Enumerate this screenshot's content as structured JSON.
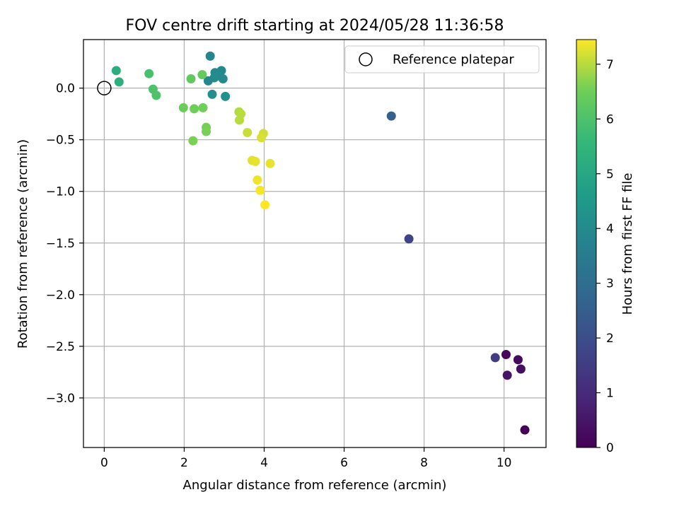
{
  "chart_data": {
    "type": "scatter",
    "title": "FOV centre drift starting at 2024/05/28 11:36:58",
    "xlabel": "Angular distance from reference (arcmin)",
    "ylabel": "Rotation from reference (arcmin)",
    "xlim": [
      -0.52,
      11.05
    ],
    "ylim": [
      -3.48,
      0.47
    ],
    "xticks": [
      0,
      2,
      4,
      6,
      8,
      10
    ],
    "yticks": [
      0.0,
      -0.5,
      -1.0,
      -1.5,
      -2.0,
      -2.5,
      -3.0
    ],
    "xtick_labels": [
      "0",
      "2",
      "4",
      "6",
      "8",
      "10"
    ],
    "ytick_labels": [
      "0.0",
      "−0.5",
      "−1.0",
      "−1.5",
      "−2.0",
      "−2.5",
      "−3.0"
    ],
    "grid": true,
    "legend": {
      "label": "Reference platepar",
      "location": "top-right"
    },
    "reference_point": {
      "x": 0,
      "y": 0
    },
    "colorbar": {
      "label": "Hours from first FF file",
      "colormap": "viridis",
      "range": [
        0,
        7.45
      ],
      "ticks": [
        0,
        1,
        2,
        3,
        4,
        5,
        6,
        7
      ],
      "tick_labels": [
        "0",
        "1",
        "2",
        "3",
        "4",
        "5",
        "6",
        "7"
      ]
    },
    "points": [
      {
        "x": 10.52,
        "y": -3.31,
        "c": 0.05
      },
      {
        "x": 10.05,
        "y": -2.58,
        "c": 0.15
      },
      {
        "x": 10.35,
        "y": -2.63,
        "c": 0.25
      },
      {
        "x": 10.42,
        "y": -2.72,
        "c": 0.35
      },
      {
        "x": 10.08,
        "y": -2.78,
        "c": 0.45
      },
      {
        "x": 9.78,
        "y": -2.61,
        "c": 1.5
      },
      {
        "x": 7.62,
        "y": -1.46,
        "c": 1.7
      },
      {
        "x": 7.18,
        "y": -0.27,
        "c": 2.6
      },
      {
        "x": 2.65,
        "y": 0.31,
        "c": 3.85
      },
      {
        "x": 2.93,
        "y": 0.17,
        "c": 3.95
      },
      {
        "x": 2.77,
        "y": 0.15,
        "c": 4.0
      },
      {
        "x": 2.85,
        "y": 0.12,
        "c": 4.05
      },
      {
        "x": 2.75,
        "y": 0.1,
        "c": 4.1
      },
      {
        "x": 2.97,
        "y": 0.09,
        "c": 4.0
      },
      {
        "x": 2.6,
        "y": 0.07,
        "c": 3.9
      },
      {
        "x": 2.7,
        "y": -0.06,
        "c": 4.15
      },
      {
        "x": 3.03,
        "y": -0.08,
        "c": 4.2
      },
      {
        "x": 0.3,
        "y": 0.17,
        "c": 5.2
      },
      {
        "x": 0.37,
        "y": 0.06,
        "c": 5.3
      },
      {
        "x": 1.12,
        "y": 0.14,
        "c": 5.9
      },
      {
        "x": 1.22,
        "y": -0.01,
        "c": 6.0
      },
      {
        "x": 1.3,
        "y": -0.07,
        "c": 6.05
      },
      {
        "x": 2.17,
        "y": 0.09,
        "c": 6.3
      },
      {
        "x": 2.45,
        "y": 0.13,
        "c": 6.35
      },
      {
        "x": 1.98,
        "y": -0.19,
        "c": 6.45
      },
      {
        "x": 2.25,
        "y": -0.2,
        "c": 6.5
      },
      {
        "x": 2.47,
        "y": -0.19,
        "c": 6.5
      },
      {
        "x": 2.55,
        "y": -0.38,
        "c": 6.55
      },
      {
        "x": 2.55,
        "y": -0.42,
        "c": 6.6
      },
      {
        "x": 2.22,
        "y": -0.51,
        "c": 6.6
      },
      {
        "x": 3.37,
        "y": -0.23,
        "c": 6.95
      },
      {
        "x": 3.42,
        "y": -0.25,
        "c": 7.0
      },
      {
        "x": 3.38,
        "y": -0.31,
        "c": 7.0
      },
      {
        "x": 3.58,
        "y": -0.43,
        "c": 7.1
      },
      {
        "x": 3.98,
        "y": -0.44,
        "c": 7.15
      },
      {
        "x": 3.93,
        "y": -0.48,
        "c": 7.2
      },
      {
        "x": 3.7,
        "y": -0.7,
        "c": 7.25
      },
      {
        "x": 3.78,
        "y": -0.71,
        "c": 7.3
      },
      {
        "x": 4.15,
        "y": -0.73,
        "c": 7.3
      },
      {
        "x": 3.83,
        "y": -0.89,
        "c": 7.35
      },
      {
        "x": 3.9,
        "y": -0.99,
        "c": 7.4
      },
      {
        "x": 4.02,
        "y": -1.13,
        "c": 7.45
      }
    ]
  }
}
